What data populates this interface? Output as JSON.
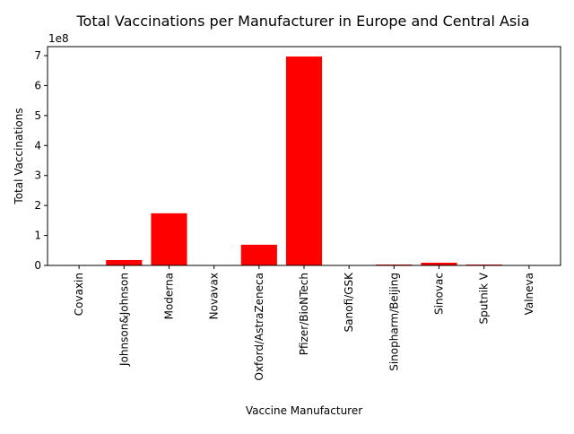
{
  "chart_data": {
    "type": "bar",
    "title": "Total Vaccinations per Manufacturer in Europe and Central Asia",
    "xlabel": "Vaccine Manufacturer",
    "ylabel": "Total Vaccinations",
    "y_offset_label": "1e8",
    "categories": [
      "Covaxin",
      "Johnson&Johnson",
      "Moderna",
      "Novavax",
      "Oxford/AstraZeneca",
      "Pfizer/BioNTech",
      "Sanofi/GSK",
      "Sinopharm/Beijing",
      "Sinovac",
      "Sputnik V",
      "Valneva"
    ],
    "values": [
      0,
      18000000,
      174000000,
      0,
      69000000,
      697000000,
      0,
      3000000,
      9000000,
      3000000,
      0
    ],
    "ylim": [
      0,
      730000000
    ],
    "yticks": [
      0,
      100000000,
      200000000,
      300000000,
      400000000,
      500000000,
      600000000,
      700000000
    ],
    "ytick_labels": [
      "0",
      "1",
      "2",
      "3",
      "4",
      "5",
      "6",
      "7"
    ],
    "grid": false,
    "bar_color": "#ff0000",
    "x_tick_rotation": "vertical"
  }
}
